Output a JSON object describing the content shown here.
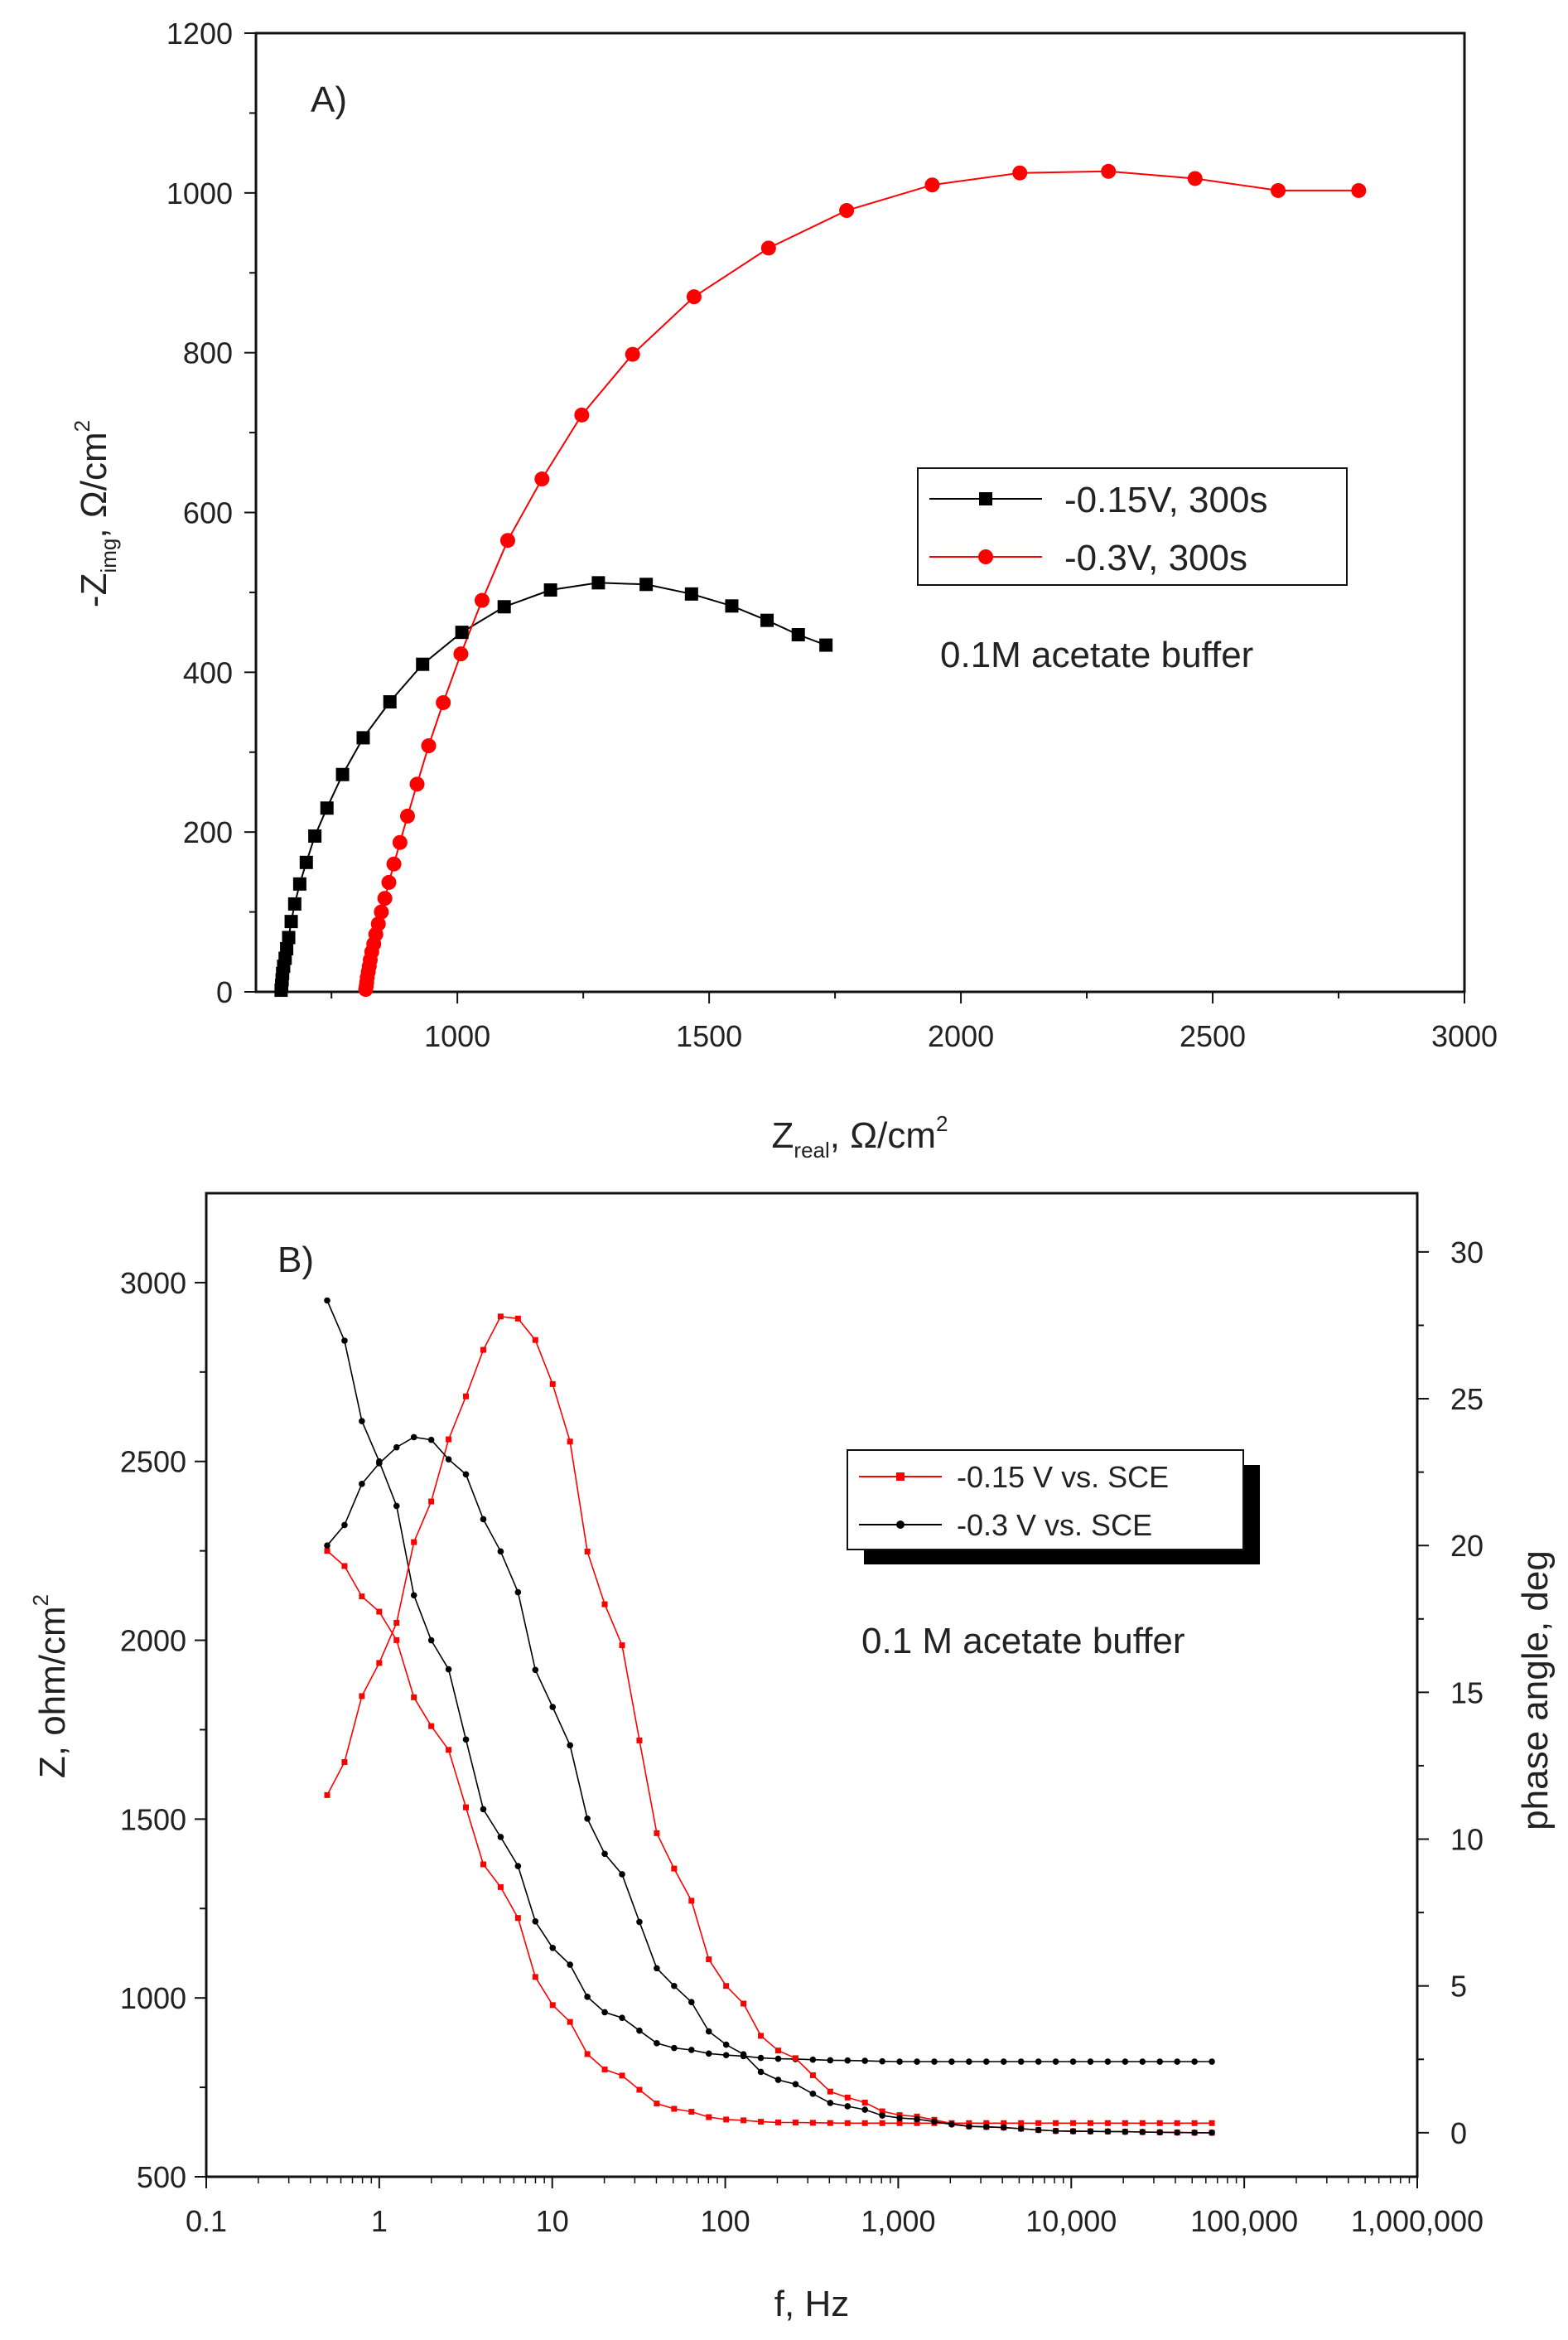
{
  "chart_data": [
    {
      "type": "scatter",
      "panel_label": "A)",
      "title": "",
      "annotation": "0.1M acetate buffer",
      "xlabel": {
        "main": "Z",
        "sub": "real",
        "rest": ", Ω/cm",
        "sup": "2"
      },
      "ylabel": {
        "main": "-Z",
        "sub": "img",
        "rest": ", Ω/cm",
        "sup": "2"
      },
      "xlim": [
        600,
        3000
      ],
      "ylim": [
        0,
        1200
      ],
      "xticks": [
        1000,
        1500,
        2000,
        2500,
        3000
      ],
      "xtick_labels": [
        "1000",
        "1500",
        "2000",
        "2500",
        "3000"
      ],
      "yticks": [
        0,
        200,
        400,
        600,
        800,
        1000,
        1200
      ],
      "ytick_labels": [
        "0",
        "200",
        "400",
        "600",
        "800",
        "1000",
        "1200"
      ],
      "legend_position": "center-right",
      "series": [
        {
          "name": "-0.15V, 300s",
          "color": "#000000",
          "marker": "square",
          "x": [
            650,
            651,
            652,
            653,
            655,
            658,
            661,
            665,
            670,
            677,
            687,
            700,
            717,
            741,
            772,
            813,
            866,
            931,
            1009,
            1093,
            1185,
            1280,
            1375,
            1465,
            1545,
            1615,
            1677,
            1732
          ],
          "y": [
            2,
            8,
            15,
            23,
            32,
            42,
            54,
            68,
            88,
            110,
            135,
            162,
            195,
            230,
            272,
            318,
            363,
            410,
            450,
            482,
            503,
            512,
            510,
            498,
            483,
            465,
            447,
            434
          ]
        },
        {
          "name": "-0.3V, 300s",
          "color": "#ff0000",
          "marker": "circle",
          "x": [
            818,
            819,
            820,
            821,
            823,
            825,
            827,
            830,
            834,
            838,
            843,
            849,
            856,
            864,
            874,
            886,
            901,
            920,
            943,
            972,
            1007,
            1049,
            1100,
            1168,
            1247,
            1348,
            1470,
            1618,
            1773,
            1943,
            2117,
            2293,
            2465,
            2630,
            2790
          ],
          "y": [
            3,
            7,
            12,
            18,
            25,
            32,
            40,
            50,
            60,
            72,
            85,
            100,
            117,
            137,
            160,
            187,
            220,
            260,
            308,
            362,
            423,
            490,
            565,
            642,
            722,
            798,
            870,
            931,
            978,
            1010,
            1025,
            1027,
            1018,
            1003,
            1003
          ]
        }
      ]
    },
    {
      "type": "line",
      "panel_label": "B)",
      "title": "",
      "annotation": "0.1 M acetate buffer",
      "xlabel": "f, Hz",
      "ylabel_left": {
        "main": "Z, ohm/cm",
        "sup": "2"
      },
      "ylabel_right": "phase angle, deg",
      "x_scale": "log",
      "xlim": [
        0.1,
        1000000
      ],
      "xticks": [
        0.1,
        1,
        10,
        100,
        1000,
        10000,
        100000,
        1000000
      ],
      "xtick_labels": [
        "0.1",
        "1",
        "10",
        "100",
        "1,000",
        "10,000",
        "100,000",
        "1,000,000"
      ],
      "ylim_left": [
        500,
        3250
      ],
      "yticks_left": [
        500,
        1000,
        1500,
        2000,
        2500,
        3000
      ],
      "ytick_labels_left": [
        "500",
        "1000",
        "1500",
        "2000",
        "2500",
        "3000"
      ],
      "ylim_right": [
        -1.5,
        32
      ],
      "yticks_right": [
        0,
        5,
        10,
        15,
        20,
        25,
        30
      ],
      "ytick_labels_right": [
        "0",
        "5",
        "10",
        "15",
        "20",
        "25",
        "30"
      ],
      "legend_position": "upper-right",
      "series": [
        {
          "name": "-0.15 V vs. SCE",
          "color": "#ff0000",
          "marker": "square",
          "axis": "left",
          "quantity": "Z",
          "x": [
            0.5,
            1,
            2,
            5,
            10,
            20,
            50,
            100,
            200,
            500,
            1000,
            10000,
            65000
          ],
          "y": [
            2250,
            2080,
            1760,
            1310,
            980,
            800,
            690,
            660,
            652,
            650,
            650,
            650,
            650
          ]
        },
        {
          "name": "-0.3 V vs. SCE",
          "color": "#000000",
          "marker": "circle",
          "axis": "left",
          "quantity": "Z",
          "x": [
            0.5,
            1,
            2,
            5,
            10,
            20,
            50,
            100,
            200,
            500,
            1000,
            10000,
            65000
          ],
          "y": [
            2950,
            2500,
            2000,
            1450,
            1140,
            960,
            860,
            840,
            830,
            825,
            822,
            822,
            822
          ]
        },
        {
          "name": "-0.15 V vs. SCE",
          "color": "#ff0000",
          "marker": "square",
          "axis": "right",
          "quantity": "phase",
          "x": [
            0.5,
            1,
            2,
            3,
            5,
            6,
            8,
            10,
            20,
            50,
            100,
            200,
            500,
            1000,
            3000,
            10000,
            65000
          ],
          "y": [
            11.5,
            16,
            21.5,
            25,
            27.8,
            27.8,
            27,
            25.5,
            18,
            9,
            5,
            2.8,
            1.2,
            0.6,
            0.2,
            0.05,
            0
          ]
        },
        {
          "name": "-0.3 V vs. SCE",
          "color": "#000000",
          "marker": "circle",
          "axis": "right",
          "quantity": "phase",
          "x": [
            0.5,
            1,
            1.5,
            2,
            3,
            5,
            10,
            20,
            50,
            100,
            200,
            500,
            1000,
            3000,
            10000,
            65000
          ],
          "y": [
            20,
            22.8,
            23.7,
            23.6,
            22.5,
            19.8,
            14.5,
            9.5,
            5,
            3,
            1.8,
            0.9,
            0.5,
            0.2,
            0.05,
            0
          ]
        }
      ]
    }
  ]
}
